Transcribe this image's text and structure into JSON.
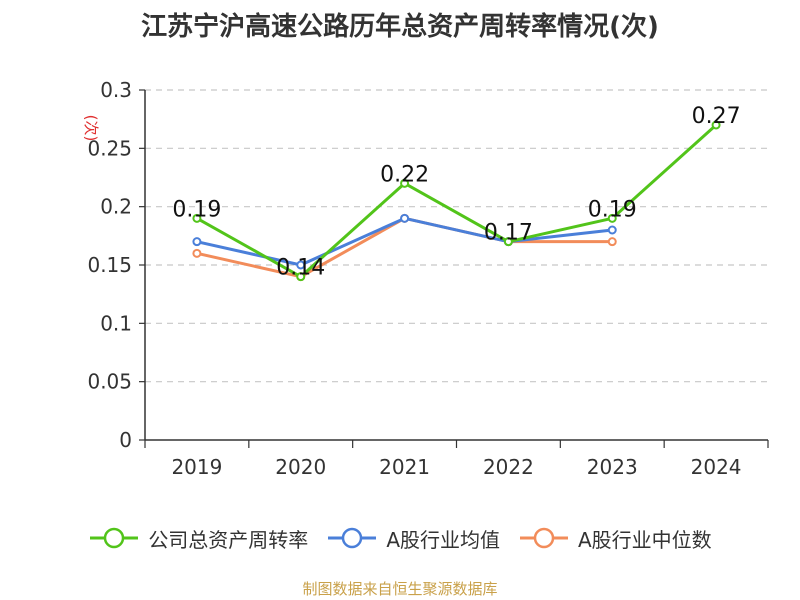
{
  "title": "江苏宁沪高速公路历年总资产周转率情况(次)",
  "source": "制图数据来自恒生聚源数据库",
  "chart_data": {
    "type": "line",
    "title": "江苏宁沪高速公路历年总资产周转率情况(次)",
    "ylabel": "(次)",
    "xlabel": "",
    "categories": [
      "2019",
      "2020",
      "2021",
      "2022",
      "2023",
      "2024"
    ],
    "ylim": [
      0,
      0.3
    ],
    "yticks": [
      "0",
      "0.05",
      "0.1",
      "0.15",
      "0.2",
      "0.25",
      "0.3"
    ],
    "grid": true,
    "legend_position": "bottom",
    "series": [
      {
        "name": "公司总资产周转率",
        "color": "#52c41a",
        "values": [
          0.19,
          0.14,
          0.22,
          0.17,
          0.19,
          0.27
        ],
        "labels": [
          "0.19",
          "0.14",
          "0.22",
          "0.17",
          "0.19",
          "0.27"
        ]
      },
      {
        "name": "A股行业均值",
        "color": "#4a7fd9",
        "values": [
          0.17,
          0.15,
          0.19,
          0.17,
          0.18,
          null
        ]
      },
      {
        "name": "A股行业中位数",
        "color": "#f28c5a",
        "values": [
          0.16,
          0.14,
          0.19,
          0.17,
          0.17,
          null
        ]
      }
    ]
  }
}
